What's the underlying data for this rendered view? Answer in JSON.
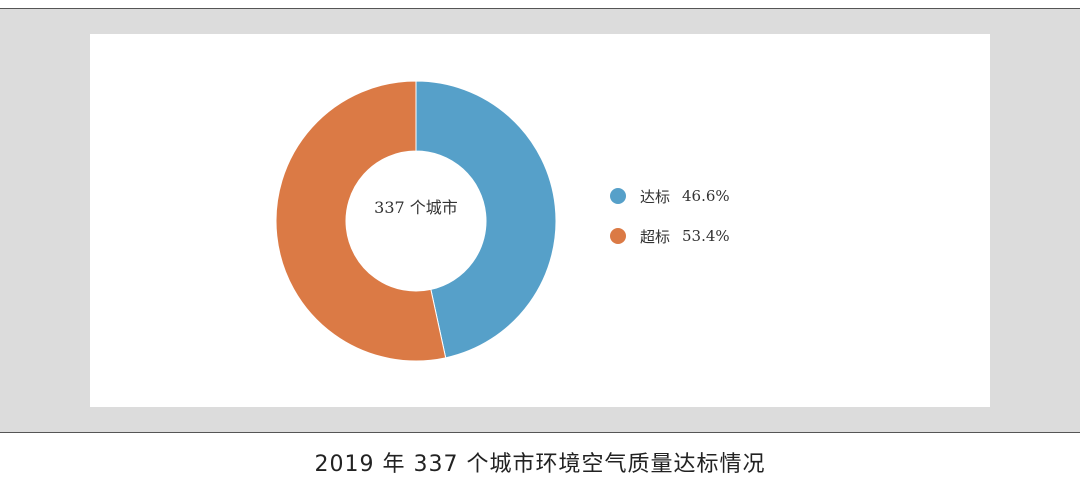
{
  "chart_data": {
    "type": "pie",
    "style": "donut",
    "center_label": "337 个城市",
    "slices": [
      {
        "name": "达标",
        "value": 46.6,
        "label": "46.6%",
        "color": "#56a0c9"
      },
      {
        "name": "超标",
        "value": 53.4,
        "label": "53.4%",
        "color": "#db7a45"
      }
    ],
    "legend_position": "right",
    "start_angle": "top",
    "direction": "clockwise"
  },
  "caption": "2019 年 337 个城市环境空气质量达标情况"
}
